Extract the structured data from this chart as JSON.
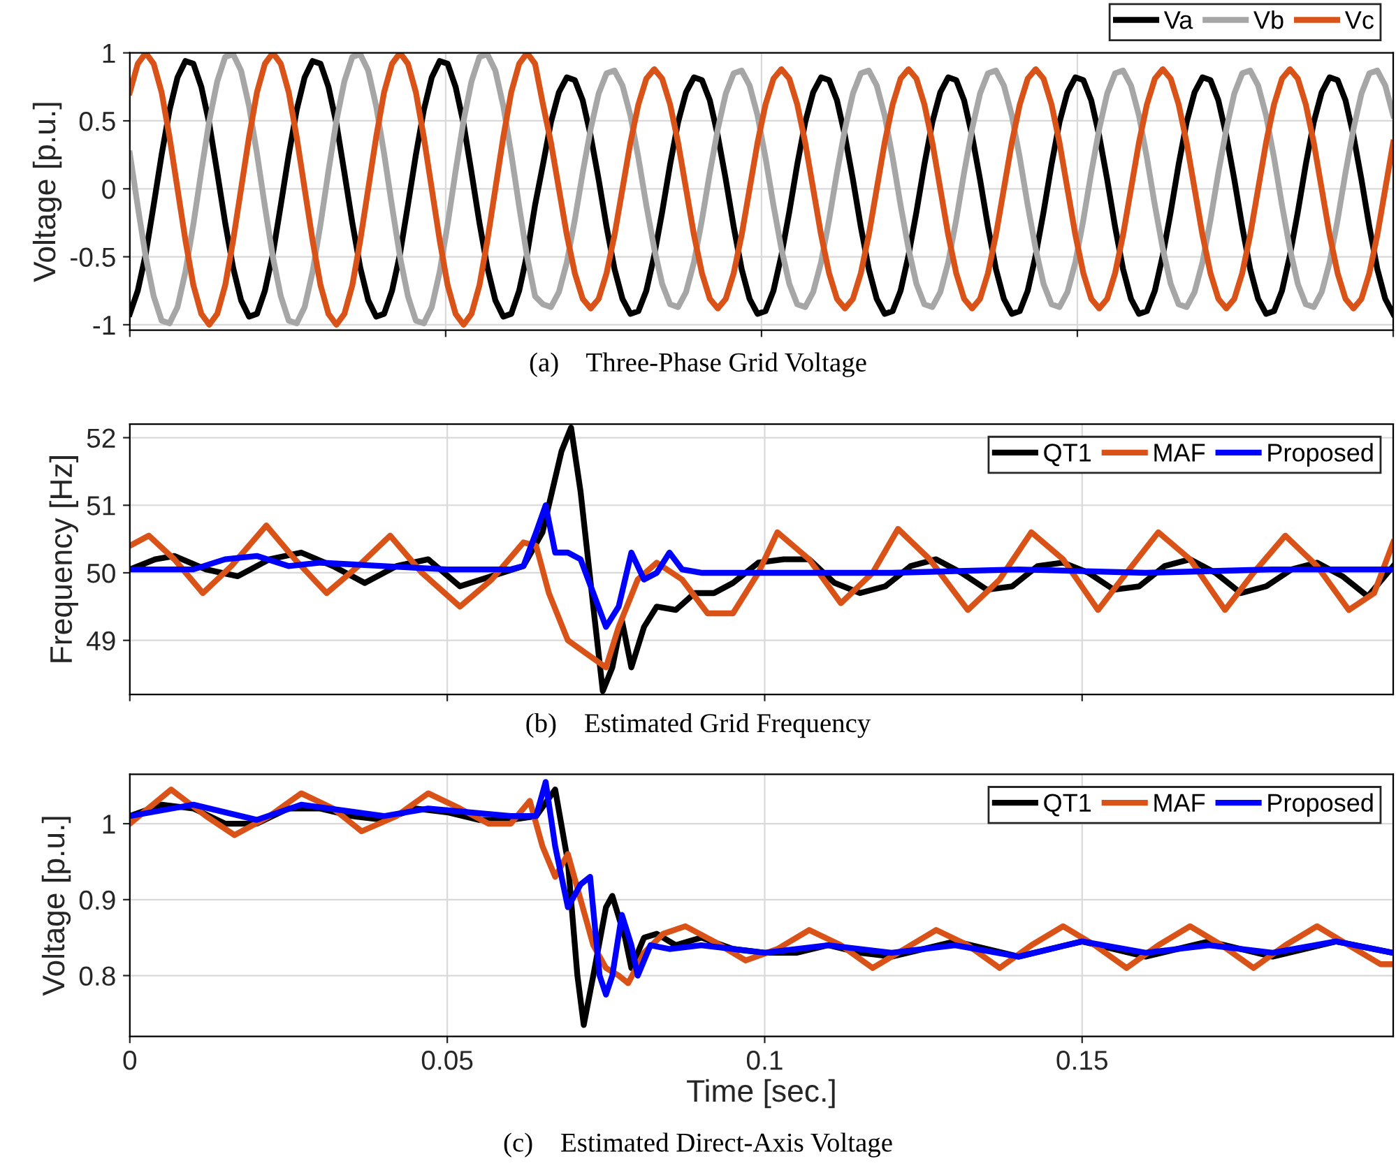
{
  "chart_data": [
    {
      "type": "line",
      "title": "(a)    Three-Phase Grid Voltage",
      "ylabel": "Voltage [p.u.]",
      "categories": [
        null,
        null,
        null,
        null,
        null,
        null,
        null,
        null,
        null,
        null,
        null,
        null,
        null,
        null,
        null,
        null,
        null,
        null,
        null,
        null,
        null,
        null,
        null,
        null,
        null,
        null,
        null,
        null,
        null,
        null,
        null,
        null,
        null,
        null,
        null,
        null,
        null,
        null,
        null,
        null,
        null,
        null,
        null,
        null,
        null,
        null,
        null,
        null,
        null,
        null,
        null,
        null,
        null,
        null,
        null,
        null,
        null,
        null,
        null,
        null,
        null,
        null,
        null,
        null,
        null,
        null,
        null,
        null,
        null,
        null,
        null,
        null,
        null,
        null,
        null,
        null,
        null,
        null,
        null,
        null,
        null,
        null,
        null,
        null,
        null,
        null,
        null,
        null,
        null,
        null,
        null,
        null,
        null,
        null,
        null,
        null,
        null,
        null,
        null,
        null,
        null,
        null,
        null,
        null,
        null,
        null,
        null,
        null,
        null,
        null,
        null,
        null,
        null,
        null,
        null,
        null,
        null,
        null,
        null,
        null,
        null,
        null,
        null,
        null,
        null,
        null,
        null,
        null,
        null,
        null,
        null,
        null,
        null,
        null,
        null,
        null,
        null,
        null,
        null,
        null,
        null,
        null,
        null,
        null,
        null,
        null,
        null,
        null,
        null,
        null,
        null,
        null,
        null,
        null,
        null,
        null,
        null,
        null,
        null,
        null
      ],
      "series": [
        {
          "name": "Va",
          "color": "#000000",
          "values": [
            -0.92,
            -0.75,
            -0.48,
            -0.12,
            0.25,
            0.58,
            0.82,
            0.94,
            0.92,
            0.75,
            0.48,
            0.12,
            -0.25,
            -0.58,
            -0.82,
            -0.94,
            -0.92,
            -0.75,
            -0.48,
            -0.12,
            0.25,
            0.58,
            0.82,
            0.94,
            0.92,
            0.75,
            0.48,
            0.12,
            -0.25,
            -0.58,
            -0.82,
            -0.94,
            -0.92,
            -0.75,
            -0.48,
            -0.12,
            0.25,
            0.58,
            0.82,
            0.94,
            0.92,
            0.75,
            0.48,
            0.12,
            -0.25,
            -0.58,
            -0.82,
            -0.94,
            -0.92,
            -0.75,
            -0.48,
            -0.12,
            0.18,
            0.49,
            0.71,
            0.82,
            0.8,
            0.65,
            0.39,
            0.07,
            -0.28,
            -0.59,
            -0.81,
            -0.92,
            -0.9,
            -0.75,
            -0.49,
            -0.17,
            0.18,
            0.49,
            0.71,
            0.82,
            0.8,
            0.65,
            0.39,
            0.07,
            -0.28,
            -0.59,
            -0.81,
            -0.92,
            -0.9,
            -0.75,
            -0.49,
            -0.17,
            0.18,
            0.49,
            0.71,
            0.82,
            0.8,
            0.65,
            0.39,
            0.07,
            -0.28,
            -0.59,
            -0.81,
            -0.92,
            -0.9,
            -0.75,
            -0.49,
            -0.17,
            0.18,
            0.49,
            0.71,
            0.82,
            0.8,
            0.65,
            0.39,
            0.07,
            -0.28,
            -0.59,
            -0.81,
            -0.92,
            -0.9,
            -0.75,
            -0.49,
            -0.17,
            0.18,
            0.49,
            0.71,
            0.82,
            0.8,
            0.65,
            0.39,
            0.07,
            -0.28,
            -0.59,
            -0.81,
            -0.92,
            -0.9,
            -0.75,
            -0.49,
            -0.17,
            0.18,
            0.49,
            0.71,
            0.82,
            0.8,
            0.65,
            0.39,
            0.07,
            -0.28,
            -0.59,
            -0.81,
            -0.92,
            -0.9,
            -0.75,
            -0.49,
            -0.17,
            0.18,
            0.49,
            0.71,
            0.82,
            0.8,
            0.65,
            0.39,
            0.07,
            -0.28,
            -0.59,
            -0.81,
            -0.92
          ]
        },
        {
          "name": "Vb",
          "color": "#a6a6a6",
          "values": [
            0.26,
            -0.13,
            -0.5,
            -0.79,
            -0.97,
            -0.99,
            -0.87,
            -0.61,
            -0.26,
            0.13,
            0.5,
            0.79,
            0.97,
            0.99,
            0.87,
            0.61,
            0.26,
            -0.13,
            -0.5,
            -0.79,
            -0.97,
            -0.99,
            -0.87,
            -0.61,
            -0.26,
            0.13,
            0.5,
            0.79,
            0.97,
            0.99,
            0.87,
            0.61,
            0.26,
            -0.13,
            -0.5,
            -0.79,
            -0.97,
            -0.99,
            -0.87,
            -0.61,
            -0.26,
            0.13,
            0.5,
            0.79,
            0.97,
            0.99,
            0.87,
            0.61,
            0.26,
            -0.13,
            -0.5,
            -0.79,
            -0.85,
            -0.87,
            -0.76,
            -0.54,
            -0.23,
            0.12,
            0.44,
            0.7,
            0.85,
            0.87,
            0.76,
            0.54,
            0.23,
            -0.12,
            -0.44,
            -0.7,
            -0.85,
            -0.87,
            -0.76,
            -0.54,
            -0.23,
            0.12,
            0.44,
            0.7,
            0.85,
            0.87,
            0.76,
            0.54,
            0.23,
            -0.12,
            -0.44,
            -0.7,
            -0.85,
            -0.87,
            -0.76,
            -0.54,
            -0.23,
            0.12,
            0.44,
            0.7,
            0.85,
            0.87,
            0.76,
            0.54,
            0.23,
            -0.12,
            -0.44,
            -0.7,
            -0.85,
            -0.87,
            -0.76,
            -0.54,
            -0.23,
            0.12,
            0.44,
            0.7,
            0.85,
            0.87,
            0.76,
            0.54,
            0.23,
            -0.12,
            -0.44,
            -0.7,
            -0.85,
            -0.87,
            -0.76,
            -0.54,
            -0.23,
            0.12,
            0.44,
            0.7,
            0.85,
            0.87,
            0.76,
            0.54,
            0.23,
            -0.12,
            -0.44,
            -0.7,
            -0.85,
            -0.87,
            -0.76,
            -0.54,
            -0.23,
            0.12,
            0.44,
            0.7,
            0.85,
            0.87,
            0.76,
            0.54,
            0.23,
            -0.12,
            -0.44,
            -0.7,
            -0.85,
            -0.87,
            -0.76,
            -0.54,
            -0.23,
            0.12,
            0.44,
            0.7,
            0.85,
            0.87,
            0.76,
            0.54
          ]
        },
        {
          "name": "Vc",
          "color": "#d95319",
          "values": [
            0.71,
            0.92,
            1,
            0.92,
            0.71,
            0.38,
            0,
            -0.38,
            -0.71,
            -0.92,
            -1,
            -0.92,
            -0.71,
            -0.38,
            0,
            0.38,
            0.71,
            0.92,
            1,
            0.92,
            0.71,
            0.38,
            0,
            -0.38,
            -0.71,
            -0.92,
            -1,
            -0.92,
            -0.71,
            -0.38,
            0,
            0.38,
            0.71,
            0.92,
            1,
            0.92,
            0.71,
            0.38,
            0,
            -0.38,
            -0.71,
            -0.92,
            -1,
            -0.92,
            -0.71,
            -0.38,
            0,
            0.38,
            0.71,
            0.92,
            1,
            0.92,
            0.62,
            0.34,
            0,
            -0.34,
            -0.62,
            -0.81,
            -0.88,
            -0.81,
            -0.62,
            -0.34,
            0,
            0.34,
            0.62,
            0.81,
            0.88,
            0.81,
            0.62,
            0.34,
            0,
            -0.34,
            -0.62,
            -0.81,
            -0.88,
            -0.81,
            -0.62,
            -0.34,
            0,
            0.34,
            0.62,
            0.81,
            0.88,
            0.81,
            0.62,
            0.34,
            0,
            -0.34,
            -0.62,
            -0.81,
            -0.88,
            -0.81,
            -0.62,
            -0.34,
            0,
            0.34,
            0.62,
            0.81,
            0.88,
            0.81,
            0.62,
            0.34,
            0,
            -0.34,
            -0.62,
            -0.81,
            -0.88,
            -0.81,
            -0.62,
            -0.34,
            0,
            0.34,
            0.62,
            0.81,
            0.88,
            0.81,
            0.62,
            0.34,
            0,
            -0.34,
            -0.62,
            -0.81,
            -0.88,
            -0.81,
            -0.62,
            -0.34,
            0,
            0.34,
            0.62,
            0.81,
            0.88,
            0.81,
            0.62,
            0.34,
            0,
            -0.34,
            -0.62,
            -0.81,
            -0.88,
            -0.81,
            -0.62,
            -0.34,
            0,
            0.34,
            0.62,
            0.81,
            0.88,
            0.81,
            0.62,
            0.34,
            0,
            -0.34,
            -0.62,
            -0.81,
            -0.88,
            -0.81,
            -0.62,
            -0.34,
            0,
            0.34
          ]
        }
      ],
      "ylim": [
        -1.04,
        1.0
      ],
      "yticks": [
        -1,
        -0.5,
        0,
        0.5,
        1
      ],
      "grid": true,
      "legend": "top right",
      "tick_labels": "y"
    },
    {
      "type": "line",
      "title": "(b)    Estimated Grid Frequency",
      "ylabel": "Frequency [Hz]",
      "series": [
        {
          "name": "QT1",
          "color": "#000000",
          "x": [
            0,
            0.004,
            0.007,
            0.012,
            0.017,
            0.022,
            0.027,
            0.032,
            0.037,
            0.042,
            0.047,
            0.052,
            0.057,
            0.062,
            0.065,
            0.068,
            0.0695,
            0.071,
            0.073,
            0.0745,
            0.076,
            0.0775,
            0.079,
            0.081,
            0.083,
            0.086,
            0.089,
            0.092,
            0.095,
            0.099,
            0.103,
            0.107,
            0.111,
            0.115,
            0.119,
            0.123,
            0.127,
            0.131,
            0.135,
            0.139,
            0.143,
            0.147,
            0.151,
            0.155,
            0.159,
            0.163,
            0.167,
            0.171,
            0.175,
            0.179,
            0.183,
            0.187,
            0.191,
            0.195,
            0.199
          ],
          "values": [
            50.05,
            50.2,
            50.25,
            50.05,
            49.95,
            50.2,
            50.3,
            50.1,
            49.85,
            50.1,
            50.2,
            49.8,
            49.95,
            50.1,
            50.6,
            51.8,
            52.15,
            51.2,
            49.5,
            48.25,
            48.6,
            49.3,
            48.6,
            49.2,
            49.5,
            49.45,
            49.7,
            49.7,
            49.85,
            50.15,
            50.2,
            50.2,
            49.85,
            49.7,
            49.8,
            50.1,
            50.2,
            50.0,
            49.75,
            49.8,
            50.1,
            50.15,
            50.0,
            49.75,
            49.8,
            50.1,
            50.2,
            50.0,
            49.7,
            49.8,
            50.05,
            50.15,
            49.95,
            49.65,
            50.1
          ]
        },
        {
          "name": "MAF",
          "color": "#d95319",
          "x": [
            0,
            0.003,
            0.007,
            0.0115,
            0.016,
            0.0215,
            0.026,
            0.031,
            0.036,
            0.041,
            0.046,
            0.052,
            0.057,
            0.062,
            0.064,
            0.066,
            0.069,
            0.072,
            0.075,
            0.077,
            0.08,
            0.083,
            0.087,
            0.091,
            0.095,
            0.099,
            0.102,
            0.107,
            0.112,
            0.117,
            0.121,
            0.126,
            0.132,
            0.137,
            0.142,
            0.147,
            0.1525,
            0.157,
            0.162,
            0.167,
            0.1725,
            0.177,
            0.182,
            0.187,
            0.192,
            0.196,
            0.199
          ],
          "values": [
            50.4,
            50.55,
            50.2,
            49.7,
            50.1,
            50.7,
            50.2,
            49.7,
            50.1,
            50.55,
            50.0,
            49.5,
            49.9,
            50.45,
            50.4,
            49.7,
            49.0,
            48.8,
            48.6,
            49.2,
            49.9,
            50.15,
            49.9,
            49.4,
            49.4,
            50.0,
            50.6,
            50.2,
            49.55,
            50.0,
            50.65,
            50.2,
            49.45,
            49.9,
            50.6,
            50.2,
            49.45,
            50.0,
            50.6,
            50.2,
            49.45,
            50.0,
            50.55,
            50.1,
            49.45,
            49.7,
            50.45
          ]
        },
        {
          "name": "Proposed",
          "color": "#0000ff",
          "x": [
            0,
            0.01,
            0.015,
            0.02,
            0.025,
            0.03,
            0.04,
            0.05,
            0.06,
            0.062,
            0.064,
            0.0655,
            0.067,
            0.069,
            0.071,
            0.073,
            0.075,
            0.077,
            0.079,
            0.081,
            0.083,
            0.085,
            0.087,
            0.09,
            0.1,
            0.12,
            0.14,
            0.16,
            0.18,
            0.199
          ],
          "values": [
            50.05,
            50.05,
            50.2,
            50.25,
            50.1,
            50.15,
            50.1,
            50.05,
            50.05,
            50.1,
            50.6,
            51.0,
            50.3,
            50.3,
            50.2,
            49.7,
            49.2,
            49.5,
            50.3,
            49.9,
            50.0,
            50.3,
            50.05,
            50.0,
            50.0,
            50.0,
            50.05,
            50.0,
            50.05,
            50.05
          ]
        }
      ],
      "xlim": [
        0,
        0.199
      ],
      "xticks": [
        0,
        0.05,
        0.1,
        0.15
      ],
      "ylim": [
        48.2,
        52.2
      ],
      "yticks": [
        49,
        50,
        51,
        52
      ],
      "grid": true,
      "legend": "top right",
      "tick_labels": "y"
    },
    {
      "type": "line",
      "title": "(c)    Estimated Direct-Axis Voltage",
      "xlabel": "Time [sec.]",
      "ylabel": "Voltage [p.u.]",
      "series": [
        {
          "name": "QT1",
          "color": "#000000",
          "x": [
            0,
            0.005,
            0.01,
            0.015,
            0.02,
            0.025,
            0.03,
            0.035,
            0.04,
            0.045,
            0.05,
            0.055,
            0.06,
            0.064,
            0.067,
            0.069,
            0.0705,
            0.0715,
            0.073,
            0.075,
            0.076,
            0.078,
            0.079,
            0.081,
            0.083,
            0.086,
            0.09,
            0.095,
            0.1,
            0.105,
            0.11,
            0.115,
            0.12,
            0.13,
            0.14,
            0.15,
            0.16,
            0.17,
            0.18,
            0.19,
            0.199
          ],
          "values": [
            1.01,
            1.025,
            1.02,
            1.0,
            1.0,
            1.02,
            1.02,
            1.01,
            1.005,
            1.02,
            1.015,
            1.005,
            1.005,
            1.01,
            1.045,
            0.95,
            0.8,
            0.735,
            0.8,
            0.89,
            0.905,
            0.85,
            0.81,
            0.85,
            0.855,
            0.84,
            0.85,
            0.835,
            0.83,
            0.83,
            0.84,
            0.83,
            0.825,
            0.845,
            0.825,
            0.845,
            0.825,
            0.845,
            0.825,
            0.845,
            0.83
          ]
        },
        {
          "name": "MAF",
          "color": "#d95319",
          "x": [
            0,
            0.0065,
            0.012,
            0.0165,
            0.022,
            0.027,
            0.032,
            0.0365,
            0.042,
            0.047,
            0.052,
            0.0565,
            0.06,
            0.063,
            0.065,
            0.067,
            0.069,
            0.071,
            0.073,
            0.075,
            0.077,
            0.0785,
            0.081,
            0.084,
            0.0875,
            0.092,
            0.097,
            0.102,
            0.107,
            0.112,
            0.117,
            0.122,
            0.127,
            0.132,
            0.137,
            0.142,
            0.147,
            0.152,
            0.157,
            0.162,
            0.167,
            0.172,
            0.177,
            0.182,
            0.187,
            0.192,
            0.197,
            0.199
          ],
          "values": [
            1.0,
            1.045,
            1.01,
            0.985,
            1.01,
            1.04,
            1.02,
            0.99,
            1.01,
            1.04,
            1.02,
            1.0,
            1.0,
            1.03,
            0.97,
            0.93,
            0.96,
            0.9,
            0.84,
            0.81,
            0.8,
            0.79,
            0.83,
            0.855,
            0.865,
            0.845,
            0.82,
            0.835,
            0.86,
            0.84,
            0.81,
            0.835,
            0.86,
            0.84,
            0.81,
            0.84,
            0.865,
            0.84,
            0.81,
            0.84,
            0.865,
            0.84,
            0.81,
            0.84,
            0.865,
            0.84,
            0.815,
            0.815
          ]
        },
        {
          "name": "Proposed",
          "color": "#0000ff",
          "x": [
            0,
            0.01,
            0.02,
            0.027,
            0.04,
            0.047,
            0.06,
            0.064,
            0.0655,
            0.067,
            0.069,
            0.071,
            0.0725,
            0.074,
            0.075,
            0.076,
            0.0775,
            0.079,
            0.08,
            0.082,
            0.085,
            0.09,
            0.1,
            0.11,
            0.12,
            0.13,
            0.14,
            0.15,
            0.16,
            0.17,
            0.18,
            0.19,
            0.199
          ],
          "values": [
            1.01,
            1.025,
            1.005,
            1.025,
            1.01,
            1.02,
            1.01,
            1.01,
            1.055,
            0.97,
            0.89,
            0.92,
            0.93,
            0.8,
            0.775,
            0.8,
            0.88,
            0.84,
            0.8,
            0.84,
            0.835,
            0.84,
            0.83,
            0.84,
            0.83,
            0.84,
            0.825,
            0.845,
            0.83,
            0.84,
            0.83,
            0.845,
            0.83
          ]
        }
      ],
      "xlim": [
        0,
        0.199
      ],
      "xticks": [
        0,
        0.05,
        0.1,
        0.15
      ],
      "ylim": [
        0.72,
        1.065
      ],
      "yticks": [
        0.8,
        0.9,
        1
      ],
      "grid": true,
      "legend": "top right"
    }
  ]
}
